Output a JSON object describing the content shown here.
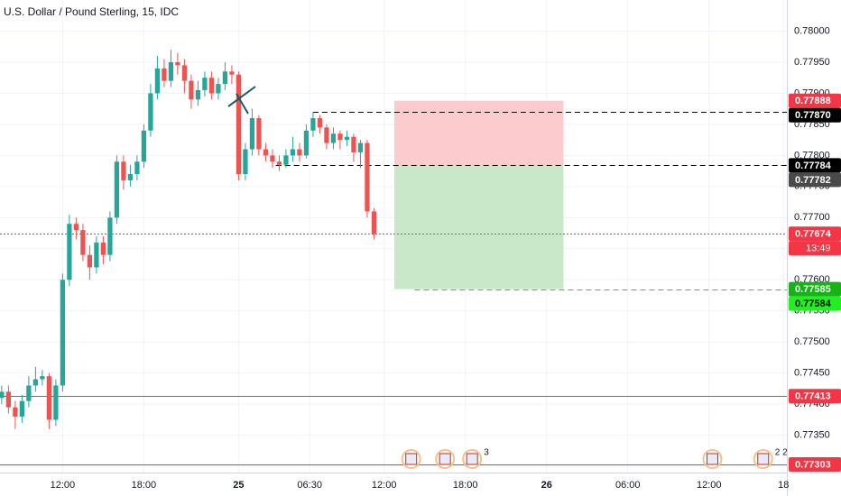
{
  "chart_data": {
    "type": "candlestick",
    "title": "U.S. Dollar / Pound Sterling, 15, IDC",
    "up_color": "#26a69a",
    "down_color": "#ef5350",
    "grid": true,
    "xlim": [
      -0.5,
      232
    ],
    "xticks": [
      {
        "value": 18,
        "label": "12:00"
      },
      {
        "value": 42,
        "label": "18:00"
      },
      {
        "value": 70,
        "label": "25"
      },
      {
        "value": 91,
        "label": "06:30"
      },
      {
        "value": 113,
        "label": "12:00"
      },
      {
        "value": 137,
        "label": "18:00"
      },
      {
        "value": 161,
        "label": "26"
      },
      {
        "value": 185,
        "label": "06:00"
      },
      {
        "value": 209,
        "label": "12:00"
      },
      {
        "value": 231,
        "label": "18"
      }
    ],
    "ylim": [
      0.7729,
      0.7805
    ],
    "yticks": [
      {
        "value": 0.773,
        "label": "0.77300"
      },
      {
        "value": 0.7735,
        "label": "0.77350"
      },
      {
        "value": 0.774,
        "label": "0.77400"
      },
      {
        "value": 0.7745,
        "label": "0.77450"
      },
      {
        "value": 0.775,
        "label": "0.77500"
      },
      {
        "value": 0.7755,
        "label": "0.77550"
      },
      {
        "value": 0.776,
        "label": "0.77600"
      },
      {
        "value": 0.7765,
        "label": "0.77650"
      },
      {
        "value": 0.777,
        "label": "0.77700"
      },
      {
        "value": 0.7775,
        "label": "0.77750"
      },
      {
        "value": 0.778,
        "label": "0.77800"
      },
      {
        "value": 0.7785,
        "label": "0.77850"
      },
      {
        "value": 0.779,
        "label": "0.77900"
      },
      {
        "value": 0.7795,
        "label": "0.77950"
      },
      {
        "value": 0.78,
        "label": "0.78000"
      }
    ],
    "x": [
      0,
      2,
      4,
      6,
      8,
      10,
      12,
      14,
      16,
      18,
      20,
      22,
      24,
      26,
      28,
      30,
      32,
      34,
      36,
      38,
      40,
      42,
      44,
      46,
      48,
      50,
      52,
      54,
      56,
      58,
      60,
      62,
      64,
      66,
      68,
      70,
      72,
      74,
      76,
      78,
      80,
      82,
      84,
      86,
      88,
      90,
      92,
      94,
      96,
      98,
      100,
      102,
      104,
      106,
      108,
      110
    ],
    "open": [
      0.7741,
      0.7742,
      0.77395,
      0.7738,
      0.77405,
      0.7743,
      0.7744,
      0.77445,
      0.77375,
      0.7743,
      0.776,
      0.7769,
      0.7768,
      0.7764,
      0.7762,
      0.7766,
      0.7764,
      0.777,
      0.7779,
      0.7776,
      0.7777,
      0.7779,
      0.7784,
      0.779,
      0.7794,
      0.7792,
      0.7795,
      0.77945,
      0.7792,
      0.7789,
      0.77905,
      0.77925,
      0.779,
      0.77915,
      0.77935,
      0.7793,
      0.7777,
      0.7781,
      0.7786,
      0.7781,
      0.778,
      0.7779,
      0.77785,
      0.778,
      0.7781,
      0.778,
      0.7784,
      0.7786,
      0.77845,
      0.7782,
      0.77835,
      0.77825,
      0.7783,
      0.77805,
      0.7782,
      0.7771
    ],
    "high": [
      0.7743,
      0.7743,
      0.77405,
      0.77415,
      0.77445,
      0.7746,
      0.77455,
      0.7745,
      0.7744,
      0.7761,
      0.77705,
      0.777,
      0.7769,
      0.77655,
      0.7767,
      0.7767,
      0.7771,
      0.778,
      0.778,
      0.77785,
      0.778,
      0.7785,
      0.77915,
      0.7796,
      0.77955,
      0.7797,
      0.77965,
      0.77955,
      0.7793,
      0.7792,
      0.77935,
      0.77935,
      0.77925,
      0.7795,
      0.77945,
      0.77935,
      0.7782,
      0.77875,
      0.77865,
      0.7782,
      0.7781,
      0.778,
      0.7781,
      0.7783,
      0.7782,
      0.7785,
      0.7787,
      0.77865,
      0.7785,
      0.77845,
      0.7784,
      0.7784,
      0.77835,
      0.77825,
      0.77825,
      0.77715
    ],
    "low": [
      0.774,
      0.77385,
      0.7736,
      0.7737,
      0.77395,
      0.7742,
      0.7743,
      0.7736,
      0.77365,
      0.7742,
      0.7759,
      0.77665,
      0.7763,
      0.776,
      0.7761,
      0.77625,
      0.7763,
      0.7769,
      0.77745,
      0.7775,
      0.7776,
      0.7778,
      0.7783,
      0.7789,
      0.7791,
      0.7791,
      0.7793,
      0.779,
      0.77875,
      0.7788,
      0.77895,
      0.7789,
      0.7789,
      0.77905,
      0.77915,
      0.7776,
      0.7776,
      0.778,
      0.778,
      0.7779,
      0.7778,
      0.77775,
      0.7778,
      0.7779,
      0.7779,
      0.77795,
      0.7783,
      0.77835,
      0.7781,
      0.7781,
      0.7781,
      0.77815,
      0.7779,
      0.7778,
      0.777,
      0.77665
    ],
    "close": [
      0.7742,
      0.77395,
      0.7738,
      0.77405,
      0.7743,
      0.7744,
      0.77445,
      0.77375,
      0.7743,
      0.776,
      0.7769,
      0.7768,
      0.7764,
      0.7762,
      0.7766,
      0.7764,
      0.777,
      0.7779,
      0.7776,
      0.7777,
      0.7779,
      0.7784,
      0.779,
      0.7794,
      0.7792,
      0.7795,
      0.77945,
      0.7792,
      0.7789,
      0.77905,
      0.77925,
      0.779,
      0.77915,
      0.77935,
      0.7793,
      0.7777,
      0.7781,
      0.7786,
      0.7781,
      0.778,
      0.7779,
      0.77785,
      0.778,
      0.7781,
      0.778,
      0.7784,
      0.7786,
      0.77845,
      0.7782,
      0.77835,
      0.77825,
      0.7783,
      0.77805,
      0.7782,
      0.7771,
      0.77674
    ],
    "position": {
      "entry": 0.77784,
      "stop": 0.77888,
      "target": 0.77585,
      "x": [
        116,
        166
      ],
      "stop_color": "#fccbcd",
      "target_color": "#c8e8c9"
    },
    "levels": [
      {
        "value": 0.77888,
        "label": "0.77888",
        "color": "#f23645",
        "text_color": "#ffffff"
      },
      {
        "value": 0.7787,
        "label": "0.77870",
        "color": "#000000",
        "text_color": "#ffffff",
        "line": "dashed",
        "from": 92
      },
      {
        "value": 0.77784,
        "label": "0.77784",
        "color": "#000000",
        "text_color": "#ffffff",
        "line": "dashed",
        "from": 81
      },
      {
        "value": 0.77782,
        "label": "0.77782",
        "color": "#4a4a4a",
        "text_color": "#ffffff"
      },
      {
        "value": 0.77674,
        "label": "0.77674",
        "color": "#f23645",
        "text_color": "#ffffff",
        "line": "dotted",
        "from": -0.5,
        "countdown": "13:49"
      },
      {
        "value": 0.77585,
        "label": "0.77585",
        "color": "#16b216",
        "text_color": "#ffffff",
        "line": "dashed",
        "from": 122
      },
      {
        "value": 0.77584,
        "label": "0.77584",
        "color": "#22ee22",
        "text_color": "#000000"
      },
      {
        "value": 0.77413,
        "label": "0.77413",
        "color": "#f23645",
        "text_color": "#ffffff",
        "line": "solid",
        "from": -0.5
      },
      {
        "value": 0.77303,
        "label": "0.77303",
        "color": "#f23645",
        "text_color": "#ffffff",
        "line": "solid",
        "from": -0.5
      }
    ],
    "events": [
      {
        "x": 121
      },
      {
        "x": 131
      },
      {
        "x": 139,
        "label": "3"
      },
      {
        "x": 210
      },
      {
        "x": 225,
        "label": "2 2"
      }
    ]
  }
}
